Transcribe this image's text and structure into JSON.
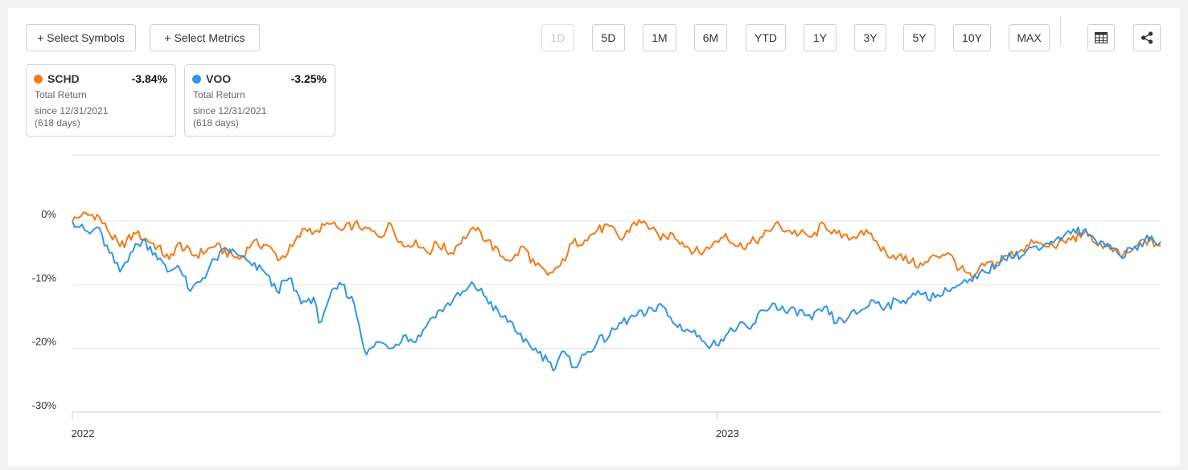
{
  "toolbar": {
    "select_symbols": "+ Select Symbols",
    "select_metrics": "+ Select Metrics",
    "ranges": [
      "1D",
      "5D",
      "1M",
      "6M",
      "YTD",
      "1Y",
      "3Y",
      "5Y",
      "10Y",
      "MAX"
    ],
    "disabled_range": "1D",
    "icons": [
      "table-icon",
      "share-icon"
    ]
  },
  "legend_cards": [
    {
      "symbol": "SCHD",
      "return": "-3.84%",
      "metric": "Total Return",
      "since": "since 12/31/2021",
      "days": "(618 days)",
      "color": "#f47a16"
    },
    {
      "symbol": "VOO",
      "return": "-3.25%",
      "metric": "Total Return",
      "since": "since 12/31/2021",
      "days": "(618 days)",
      "color": "#2f96e8"
    }
  ],
  "chart_data": {
    "type": "line",
    "title": "",
    "xlabel": "",
    "ylabel": "",
    "x_ticks": [
      "2022",
      "2023"
    ],
    "y_ticks": [
      "0%",
      "-10%",
      "-20%",
      "-30%"
    ],
    "ylim": [
      -30,
      10
    ],
    "xlim": [
      "2021-12-31",
      "2023-09-10"
    ],
    "grid": true,
    "series": [
      {
        "name": "SCHD",
        "color": "#f47a16",
        "points": [
          [
            "2021-12-31",
            0
          ],
          [
            "2022-01-05",
            0.8
          ],
          [
            "2022-01-14",
            1
          ],
          [
            "2022-01-20",
            -1.5
          ],
          [
            "2022-01-27",
            -4
          ],
          [
            "2022-02-05",
            -2
          ],
          [
            "2022-02-15",
            -3.5
          ],
          [
            "2022-02-24",
            -6
          ],
          [
            "2022-03-01",
            -3.5
          ],
          [
            "2022-03-10",
            -5.5
          ],
          [
            "2022-03-22",
            -4
          ],
          [
            "2022-04-05",
            -6
          ],
          [
            "2022-04-12",
            -3.5
          ],
          [
            "2022-04-20",
            -3.8
          ],
          [
            "2022-04-28",
            -6
          ],
          [
            "2022-05-05",
            -4
          ],
          [
            "2022-05-12",
            -1.2
          ],
          [
            "2022-05-19",
            -1.5
          ],
          [
            "2022-05-26",
            -0.5
          ],
          [
            "2022-06-02",
            -1.5
          ],
          [
            "2022-06-09",
            -0.5
          ],
          [
            "2022-06-15",
            -1
          ],
          [
            "2022-06-23",
            -2.5
          ],
          [
            "2022-06-30",
            -0.5
          ],
          [
            "2022-07-07",
            -4
          ],
          [
            "2022-07-14",
            -3
          ],
          [
            "2022-07-21",
            -5
          ],
          [
            "2022-07-26",
            -3.5
          ],
          [
            "2022-08-03",
            -5
          ],
          [
            "2022-08-10",
            -2.5
          ],
          [
            "2022-08-17",
            -1.5
          ],
          [
            "2022-08-24",
            -3
          ],
          [
            "2022-08-31",
            -5.5
          ],
          [
            "2022-09-07",
            -6
          ],
          [
            "2022-09-13",
            -4
          ],
          [
            "2022-09-20",
            -7
          ],
          [
            "2022-09-27",
            -8.5
          ],
          [
            "2022-10-04",
            -7
          ],
          [
            "2022-10-11",
            -3.5
          ],
          [
            "2022-10-18",
            -3
          ],
          [
            "2022-10-25",
            -1.5
          ],
          [
            "2022-11-01",
            -0.8
          ],
          [
            "2022-11-08",
            -3
          ],
          [
            "2022-11-15",
            -0.2
          ],
          [
            "2022-11-22",
            -0.5
          ],
          [
            "2022-11-30",
            -3
          ],
          [
            "2022-12-07",
            -2
          ],
          [
            "2022-12-15",
            -4
          ],
          [
            "2022-12-22",
            -5
          ],
          [
            "2022-12-29",
            -4
          ],
          [
            "2023-01-06",
            -2
          ],
          [
            "2023-01-13",
            -4
          ],
          [
            "2023-01-20",
            -3.5
          ],
          [
            "2023-01-27",
            -2.5
          ],
          [
            "2023-02-03",
            -0.5
          ],
          [
            "2023-02-10",
            -1.5
          ],
          [
            "2023-02-17",
            -2
          ],
          [
            "2023-02-24",
            -2.5
          ],
          [
            "2023-03-03",
            -0.5
          ],
          [
            "2023-03-10",
            -2
          ],
          [
            "2023-03-17",
            -3
          ],
          [
            "2023-03-24",
            -1.5
          ],
          [
            "2023-03-31",
            -3
          ],
          [
            "2023-04-07",
            -5
          ],
          [
            "2023-04-14",
            -5.5
          ],
          [
            "2023-04-21",
            -6.5
          ],
          [
            "2023-04-28",
            -7
          ],
          [
            "2023-05-05",
            -5.5
          ],
          [
            "2023-05-12",
            -5
          ],
          [
            "2023-05-19",
            -7.5
          ],
          [
            "2023-05-26",
            -9
          ],
          [
            "2023-06-02",
            -7
          ],
          [
            "2023-06-09",
            -6.5
          ],
          [
            "2023-06-16",
            -5.5
          ],
          [
            "2023-06-23",
            -4.5
          ],
          [
            "2023-06-30",
            -3.5
          ],
          [
            "2023-07-07",
            -4
          ],
          [
            "2023-07-14",
            -3.5
          ],
          [
            "2023-07-21",
            -3
          ],
          [
            "2023-07-28",
            -2
          ],
          [
            "2023-08-04",
            -3.5
          ],
          [
            "2023-08-11",
            -4
          ],
          [
            "2023-08-18",
            -5.5
          ],
          [
            "2023-08-25",
            -4.5
          ],
          [
            "2023-09-01",
            -3
          ],
          [
            "2023-09-10",
            -3.84
          ]
        ]
      },
      {
        "name": "VOO",
        "color": "#2f96e8",
        "points": [
          [
            "2021-12-31",
            0
          ],
          [
            "2022-01-04",
            -1
          ],
          [
            "2022-01-10",
            -2
          ],
          [
            "2022-01-14",
            -1
          ],
          [
            "2022-01-21",
            -5
          ],
          [
            "2022-01-27",
            -8
          ],
          [
            "2022-02-02",
            -5
          ],
          [
            "2022-02-09",
            -3
          ],
          [
            "2022-02-16",
            -5
          ],
          [
            "2022-02-23",
            -8
          ],
          [
            "2022-03-01",
            -7
          ],
          [
            "2022-03-08",
            -11
          ],
          [
            "2022-03-15",
            -9
          ],
          [
            "2022-03-22",
            -6
          ],
          [
            "2022-03-29",
            -4.5
          ],
          [
            "2022-04-05",
            -5.5
          ],
          [
            "2022-04-12",
            -7
          ],
          [
            "2022-04-19",
            -8
          ],
          [
            "2022-04-26",
            -11
          ],
          [
            "2022-05-03",
            -9
          ],
          [
            "2022-05-10",
            -13
          ],
          [
            "2022-05-17",
            -12
          ],
          [
            "2022-05-20",
            -16
          ],
          [
            "2022-05-26",
            -12
          ],
          [
            "2022-06-02",
            -10
          ],
          [
            "2022-06-09",
            -13
          ],
          [
            "2022-06-16",
            -21
          ],
          [
            "2022-06-23",
            -19
          ],
          [
            "2022-06-30",
            -20
          ],
          [
            "2022-07-07",
            -18
          ],
          [
            "2022-07-14",
            -19
          ],
          [
            "2022-07-21",
            -16
          ],
          [
            "2022-07-28",
            -14
          ],
          [
            "2022-08-04",
            -12.5
          ],
          [
            "2022-08-11",
            -11
          ],
          [
            "2022-08-16",
            -10
          ],
          [
            "2022-08-23",
            -12
          ],
          [
            "2022-08-31",
            -15
          ],
          [
            "2022-09-07",
            -16
          ],
          [
            "2022-09-13",
            -19
          ],
          [
            "2022-09-20",
            -20
          ],
          [
            "2022-09-27",
            -22
          ],
          [
            "2022-09-30",
            -23.5
          ],
          [
            "2022-10-05",
            -20.5
          ],
          [
            "2022-10-12",
            -23
          ],
          [
            "2022-10-18",
            -21
          ],
          [
            "2022-10-25",
            -19
          ],
          [
            "2022-11-01",
            -18
          ],
          [
            "2022-11-08",
            -16
          ],
          [
            "2022-11-15",
            -15
          ],
          [
            "2022-11-22",
            -14.5
          ],
          [
            "2022-11-30",
            -13
          ],
          [
            "2022-12-07",
            -16
          ],
          [
            "2022-12-15",
            -17
          ],
          [
            "2022-12-22",
            -18
          ],
          [
            "2022-12-29",
            -19.5
          ],
          [
            "2023-01-06",
            -18
          ],
          [
            "2023-01-13",
            -16.5
          ],
          [
            "2023-01-20",
            -17
          ],
          [
            "2023-01-27",
            -14
          ],
          [
            "2023-02-03",
            -13
          ],
          [
            "2023-02-10",
            -14.5
          ],
          [
            "2023-02-17",
            -14
          ],
          [
            "2023-02-24",
            -15.5
          ],
          [
            "2023-03-03",
            -13.5
          ],
          [
            "2023-03-10",
            -16
          ],
          [
            "2023-03-17",
            -15
          ],
          [
            "2023-03-24",
            -14
          ],
          [
            "2023-03-31",
            -12.5
          ],
          [
            "2023-04-07",
            -13.5
          ],
          [
            "2023-04-14",
            -12.5
          ],
          [
            "2023-04-21",
            -12
          ],
          [
            "2023-04-28",
            -11.5
          ],
          [
            "2023-05-05",
            -12
          ],
          [
            "2023-05-12",
            -11
          ],
          [
            "2023-05-19",
            -10
          ],
          [
            "2023-05-26",
            -9.5
          ],
          [
            "2023-06-02",
            -8
          ],
          [
            "2023-06-09",
            -7
          ],
          [
            "2023-06-16",
            -5
          ],
          [
            "2023-06-23",
            -5.5
          ],
          [
            "2023-06-30",
            -4
          ],
          [
            "2023-07-07",
            -3.5
          ],
          [
            "2023-07-14",
            -2.5
          ],
          [
            "2023-07-21",
            -2
          ],
          [
            "2023-07-28",
            -1.5
          ],
          [
            "2023-08-04",
            -3
          ],
          [
            "2023-08-11",
            -3.5
          ],
          [
            "2023-08-18",
            -5.5
          ],
          [
            "2023-08-25",
            -4.5
          ],
          [
            "2023-09-01",
            -3
          ],
          [
            "2023-09-10",
            -3.25
          ]
        ]
      }
    ]
  }
}
